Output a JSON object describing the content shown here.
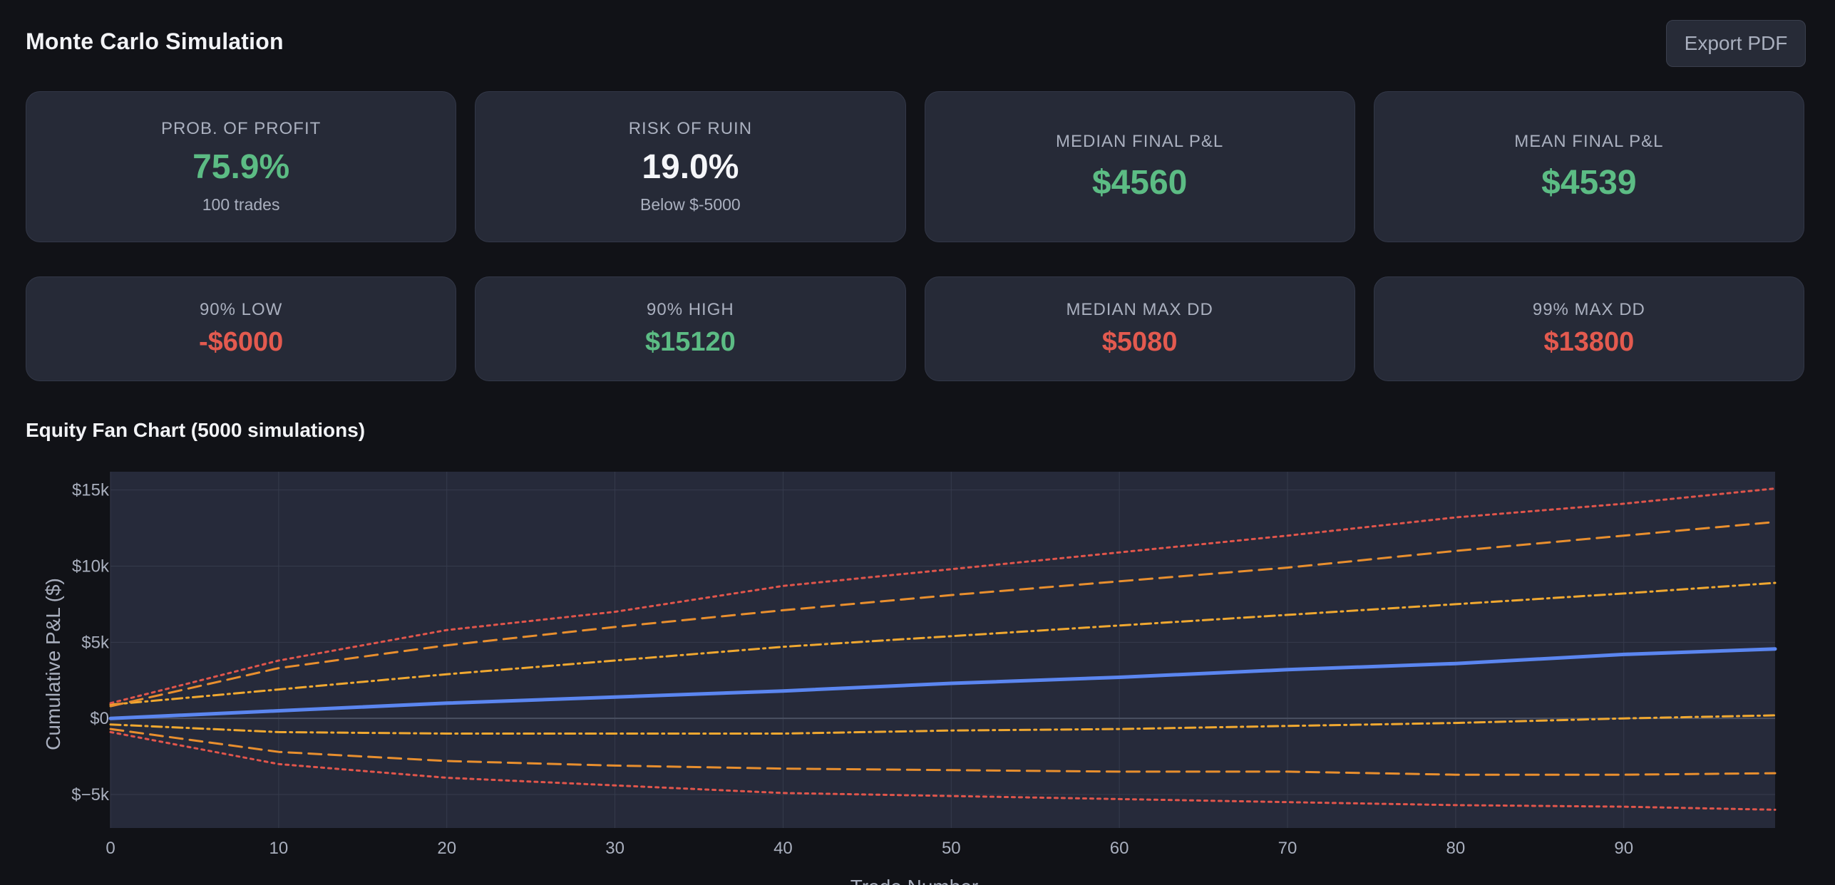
{
  "header": {
    "title": "Monte Carlo Simulation",
    "export_label": "Export PDF"
  },
  "stats_row1": [
    {
      "label": "PROB. OF PROFIT",
      "value": "75.9%",
      "sub": "100 trades",
      "tone": "green"
    },
    {
      "label": "RISK OF RUIN",
      "value": "19.0%",
      "sub": "Below $-5000",
      "tone": "white"
    },
    {
      "label": "MEDIAN FINAL P&L",
      "value": "$4560",
      "sub": "",
      "tone": "green"
    },
    {
      "label": "MEAN FINAL P&L",
      "value": "$4539",
      "sub": "",
      "tone": "green"
    }
  ],
  "stats_row2": [
    {
      "label": "90% LOW",
      "value": "-$6000",
      "tone": "red"
    },
    {
      "label": "90% HIGH",
      "value": "$15120",
      "tone": "green"
    },
    {
      "label": "MEDIAN MAX DD",
      "value": "$5080",
      "tone": "red"
    },
    {
      "label": "99% MAX DD",
      "value": "$13800",
      "tone": "red"
    }
  ],
  "section": {
    "title": "Equity Fan Chart (5000 simulations)"
  },
  "colors": {
    "median": "#5b86f0",
    "band_inner": "#f0a830",
    "band_mid": "#e98f2e",
    "band_outer": "#e0554b"
  },
  "chart_data": {
    "type": "line",
    "xlabel": "Trade Number",
    "ylabel": "Cumulative P&L ($)",
    "xlim": [
      0,
      99
    ],
    "ylim": [
      -7200,
      16200
    ],
    "x_ticks": [
      0,
      10,
      20,
      30,
      40,
      50,
      60,
      70,
      80,
      90
    ],
    "x_tick_labels": [
      "0",
      "10",
      "20",
      "30",
      "40",
      "50",
      "60",
      "70",
      "80",
      "90"
    ],
    "y_ticks": [
      -5000,
      0,
      5000,
      10000,
      15000
    ],
    "y_tick_labels": [
      "$−5k",
      "$0",
      "$5k",
      "$10k",
      "$15k"
    ],
    "grid": true,
    "x": [
      0,
      10,
      20,
      30,
      40,
      50,
      60,
      70,
      80,
      90,
      99
    ],
    "series": [
      {
        "values": [
          -900,
          -3000,
          -3900,
          -4400,
          -4900,
          -5100,
          -5300,
          -5500,
          -5700,
          -5800,
          -6000
        ],
        "color": "#e0554b",
        "dash": "dotted"
      },
      {
        "values": [
          -700,
          -2200,
          -2800,
          -3100,
          -3300,
          -3400,
          -3500,
          -3500,
          -3700,
          -3700,
          -3600
        ],
        "color": "#e98f2e",
        "dash": "dashed"
      },
      {
        "values": [
          -400,
          -900,
          -1000,
          -1000,
          -1000,
          -800,
          -700,
          -500,
          -300,
          0,
          200
        ],
        "color": "#f0a830",
        "dash": "dashdot"
      },
      {
        "values": [
          0,
          500,
          1000,
          1400,
          1800,
          2300,
          2700,
          3200,
          3600,
          4200,
          4560
        ],
        "color": "#5b86f0",
        "dash": "solid"
      },
      {
        "values": [
          900,
          1900,
          2900,
          3800,
          4700,
          5400,
          6100,
          6800,
          7500,
          8200,
          8900
        ],
        "color": "#f0a830",
        "dash": "dashdot"
      },
      {
        "values": [
          800,
          3300,
          4800,
          6000,
          7100,
          8100,
          9000,
          9900,
          11000,
          12000,
          12900
        ],
        "color": "#e98f2e",
        "dash": "dashed"
      },
      {
        "values": [
          1000,
          3800,
          5800,
          7000,
          8700,
          9800,
          10900,
          12000,
          13200,
          14100,
          15100
        ],
        "color": "#e0554b",
        "dash": "dotted"
      }
    ]
  }
}
